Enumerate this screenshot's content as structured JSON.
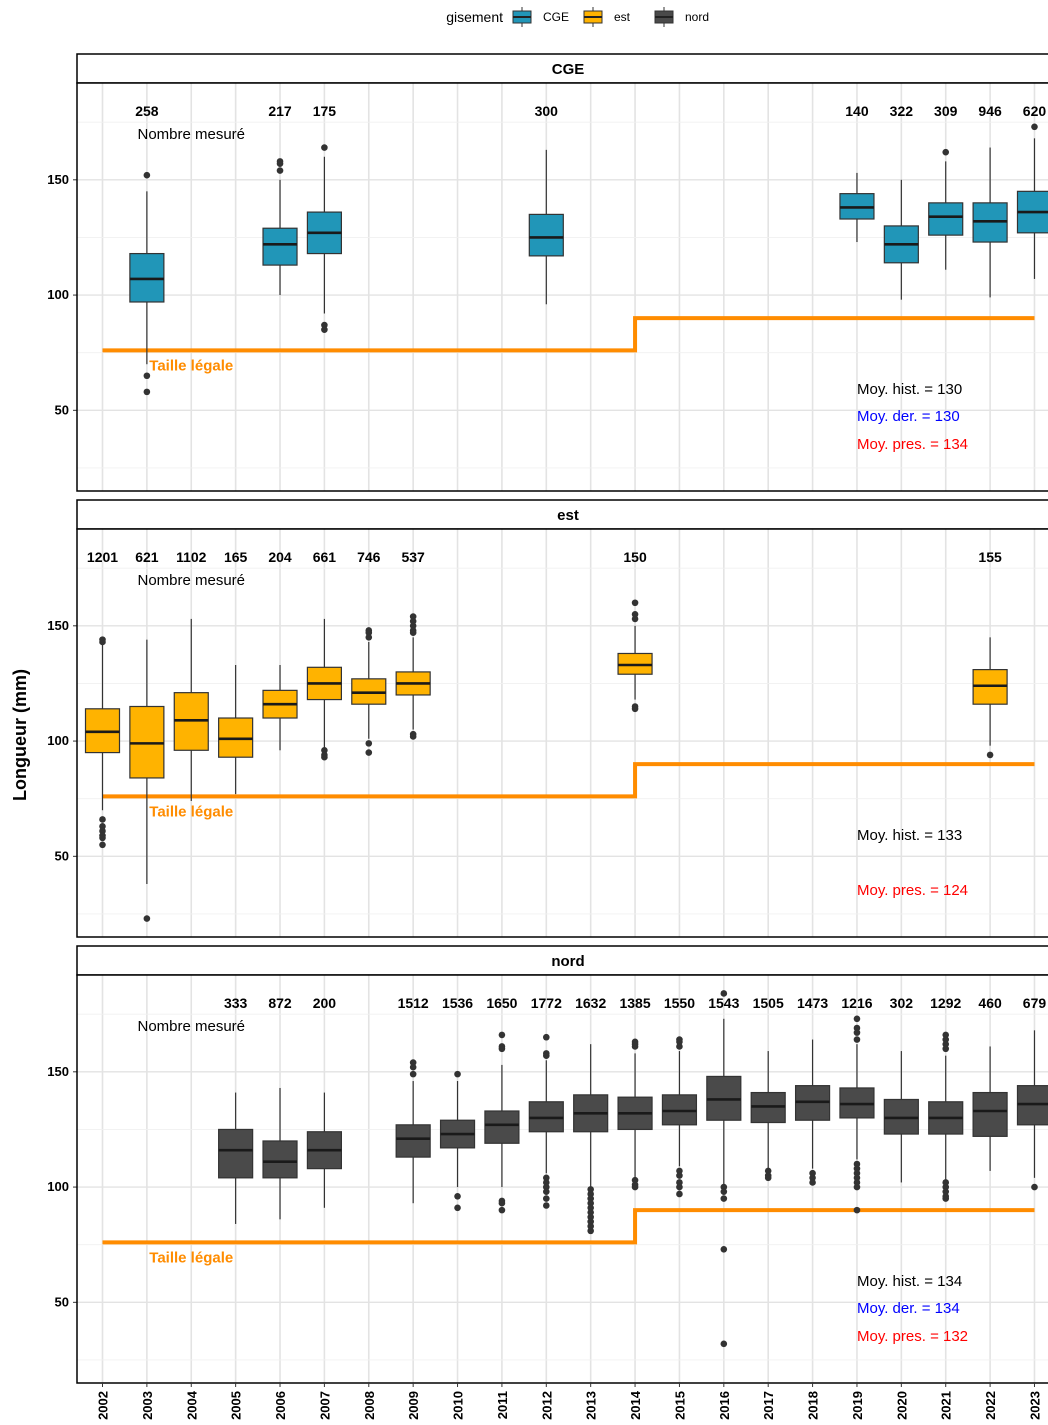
{
  "chart_data": {
    "type": "boxplot",
    "ylabel": "Longueur (mm)",
    "ylim": [
      15,
      192
    ],
    "yticks": [
      50,
      100,
      150
    ],
    "years": [
      "2002",
      "2003",
      "2004",
      "2005",
      "2006",
      "2007",
      "2008",
      "2009",
      "2010",
      "2011",
      "2012",
      "2013",
      "2014",
      "2015",
      "2016",
      "2017",
      "2018",
      "2019",
      "2020",
      "2021",
      "2022",
      "2023"
    ],
    "legend": {
      "title": "gisement",
      "entries": [
        {
          "label": "CGE",
          "color": "#2196b8"
        },
        {
          "label": "est",
          "color": "#ffb300"
        },
        {
          "label": "nord",
          "color": "#4a4a4a"
        }
      ]
    },
    "count_label": "Nombre mesuré",
    "legal_label": "Taille légale",
    "legal_color": "#ff8c00",
    "legal_size": [
      {
        "from": "2002",
        "to": "2014",
        "value": 76
      },
      {
        "from": "2014",
        "to": "2023",
        "value": 90
      }
    ],
    "panels": [
      {
        "name": "CGE",
        "color": "#2196b8",
        "boxes": [
          {
            "year": "2003",
            "n": "258",
            "min": 70,
            "q1": 97,
            "median": 107,
            "q3": 118,
            "max": 145,
            "outliers": [
              152,
              65,
              58
            ]
          },
          {
            "year": "2006",
            "n": "217",
            "min": 100,
            "q1": 113,
            "median": 122,
            "q3": 129,
            "max": 150,
            "outliers": [
              158,
              157,
              154
            ]
          },
          {
            "year": "2007",
            "n": "175",
            "min": 92,
            "q1": 118,
            "median": 127,
            "q3": 136,
            "max": 160,
            "outliers": [
              164,
              87,
              85
            ]
          },
          {
            "year": "2012",
            "n": "300",
            "min": 96,
            "q1": 117,
            "median": 125,
            "q3": 135,
            "max": 163,
            "outliers": []
          },
          {
            "year": "2019",
            "n": "140",
            "min": 123,
            "q1": 133,
            "median": 138,
            "q3": 144,
            "max": 153,
            "outliers": []
          },
          {
            "year": "2020",
            "n": "322",
            "min": 98,
            "q1": 114,
            "median": 122,
            "q3": 130,
            "max": 150,
            "outliers": []
          },
          {
            "year": "2021",
            "n": "309",
            "min": 111,
            "q1": 126,
            "median": 134,
            "q3": 140,
            "max": 158,
            "outliers": [
              162
            ]
          },
          {
            "year": "2022",
            "n": "946",
            "min": 99,
            "q1": 123,
            "median": 132,
            "q3": 140,
            "max": 164,
            "outliers": []
          },
          {
            "year": "2023",
            "n": "620",
            "min": 107,
            "q1": 127,
            "median": 136,
            "q3": 145,
            "max": 168,
            "outliers": [
              173
            ]
          }
        ],
        "stats": [
          {
            "label": "Moy. hist. =",
            "value": "130",
            "color": "#000000"
          },
          {
            "label": "Moy. der. =",
            "value": "130",
            "color": "#0000ff"
          },
          {
            "label": "Moy. pres. =",
            "value": "134",
            "color": "#ff0000"
          }
        ]
      },
      {
        "name": "est",
        "color": "#ffb300",
        "boxes": [
          {
            "year": "2002",
            "n": "1201",
            "min": 70,
            "q1": 95,
            "median": 104,
            "q3": 114,
            "max": 142,
            "outliers": [
              144,
              143,
              66,
              63,
              61,
              59,
              58,
              55
            ]
          },
          {
            "year": "2003",
            "n": "621",
            "min": 38,
            "q1": 84,
            "median": 99,
            "q3": 115,
            "max": 144,
            "outliers": [
              23
            ]
          },
          {
            "year": "2004",
            "n": "1102",
            "min": 74,
            "q1": 96,
            "median": 109,
            "q3": 121,
            "max": 153,
            "outliers": []
          },
          {
            "year": "2005",
            "n": "165",
            "min": 77,
            "q1": 93,
            "median": 101,
            "q3": 110,
            "max": 133,
            "outliers": []
          },
          {
            "year": "2006",
            "n": "204",
            "min": 96,
            "q1": 110,
            "median": 116,
            "q3": 122,
            "max": 133,
            "outliers": []
          },
          {
            "year": "2007",
            "n": "661",
            "min": 97,
            "q1": 118,
            "median": 125,
            "q3": 132,
            "max": 153,
            "outliers": [
              96,
              94,
              93
            ]
          },
          {
            "year": "2008",
            "n": "746",
            "min": 101,
            "q1": 116,
            "median": 121,
            "q3": 127,
            "max": 143,
            "outliers": [
              148,
              147,
              145,
              99,
              95
            ]
          },
          {
            "year": "2009",
            "n": "537",
            "min": 105,
            "q1": 120,
            "median": 125,
            "q3": 130,
            "max": 145,
            "outliers": [
              154,
              152,
              150,
              148,
              147,
              103,
              102
            ]
          },
          {
            "year": "2014",
            "n": "150",
            "min": 118,
            "q1": 129,
            "median": 133,
            "q3": 138,
            "max": 150,
            "outliers": [
              160,
              155,
              153,
              115,
              114
            ]
          },
          {
            "year": "2022",
            "n": "155",
            "min": 98,
            "q1": 116,
            "median": 124,
            "q3": 131,
            "max": 145,
            "outliers": [
              94
            ]
          }
        ],
        "stats": [
          {
            "label": "Moy. hist. =",
            "value": "133",
            "color": "#000000"
          },
          {
            "label": "Moy. pres. =",
            "value": "124",
            "color": "#ff0000"
          }
        ]
      },
      {
        "name": "nord",
        "color": "#4a4a4a",
        "boxes": [
          {
            "year": "2005",
            "n": "333",
            "min": 84,
            "q1": 104,
            "median": 116,
            "q3": 125,
            "max": 141,
            "outliers": []
          },
          {
            "year": "2006",
            "n": "872",
            "min": 86,
            "q1": 104,
            "median": 111,
            "q3": 120,
            "max": 143,
            "outliers": []
          },
          {
            "year": "2007",
            "n": "200",
            "min": 91,
            "q1": 108,
            "median": 116,
            "q3": 124,
            "max": 141,
            "outliers": []
          },
          {
            "year": "2009",
            "n": "1512",
            "min": 93,
            "q1": 113,
            "median": 121,
            "q3": 127,
            "max": 146,
            "outliers": [
              154,
              152,
              149
            ]
          },
          {
            "year": "2010",
            "n": "1536",
            "min": 100,
            "q1": 117,
            "median": 123,
            "q3": 129,
            "max": 146,
            "outliers": [
              149,
              96,
              91
            ]
          },
          {
            "year": "2011",
            "n": "1650",
            "min": 100,
            "q1": 119,
            "median": 127,
            "q3": 133,
            "max": 153,
            "outliers": [
              166,
              161,
              160,
              94,
              93,
              90
            ]
          },
          {
            "year": "2012",
            "n": "1772",
            "min": 106,
            "q1": 124,
            "median": 130,
            "q3": 137,
            "max": 155,
            "outliers": [
              165,
              158,
              157,
              104,
              102,
              100,
              98,
              95,
              92
            ]
          },
          {
            "year": "2013",
            "n": "1632",
            "min": 100,
            "q1": 124,
            "median": 132,
            "q3": 140,
            "max": 162,
            "outliers": [
              99,
              97,
              95,
              93,
              91,
              89,
              87,
              85,
              83,
              81
            ]
          },
          {
            "year": "2014",
            "n": "1385",
            "min": 104,
            "q1": 125,
            "median": 132,
            "q3": 139,
            "max": 158,
            "outliers": [
              163,
              162,
              161,
              103,
              101,
              100
            ]
          },
          {
            "year": "2015",
            "n": "1550",
            "min": 109,
            "q1": 127,
            "median": 133,
            "q3": 140,
            "max": 159,
            "outliers": [
              164,
              163,
              161,
              107,
              105,
              102,
              100,
              97
            ]
          },
          {
            "year": "2016",
            "n": "1543",
            "min": 101,
            "q1": 129,
            "median": 138,
            "q3": 148,
            "max": 173,
            "outliers": [
              184,
              100,
              98,
              95,
              73,
              32
            ]
          },
          {
            "year": "2017",
            "n": "1505",
            "min": 108,
            "q1": 128,
            "median": 135,
            "q3": 141,
            "max": 159,
            "outliers": [
              107,
              105,
              104
            ]
          },
          {
            "year": "2018",
            "n": "1473",
            "min": 108,
            "q1": 129,
            "median": 137,
            "q3": 144,
            "max": 164,
            "outliers": [
              106,
              104,
              102
            ]
          },
          {
            "year": "2019",
            "n": "1216",
            "min": 112,
            "q1": 130,
            "median": 136,
            "q3": 143,
            "max": 162,
            "outliers": [
              173,
              169,
              167,
              164,
              110,
              108,
              106,
              104,
              102,
              100,
              90
            ]
          },
          {
            "year": "2020",
            "n": "302",
            "min": 102,
            "q1": 123,
            "median": 130,
            "q3": 138,
            "max": 159,
            "outliers": []
          },
          {
            "year": "2021",
            "n": "1292",
            "min": 103,
            "q1": 123,
            "median": 130,
            "q3": 137,
            "max": 157,
            "outliers": [
              166,
              164,
              162,
              160,
              102,
              100,
              98,
              96,
              95
            ]
          },
          {
            "year": "2022",
            "n": "460",
            "min": 107,
            "q1": 122,
            "median": 133,
            "q3": 141,
            "max": 161,
            "outliers": []
          },
          {
            "year": "2023",
            "n": "679",
            "min": 104,
            "q1": 127,
            "median": 136,
            "q3": 144,
            "max": 168,
            "outliers": [
              100
            ]
          }
        ],
        "stats": [
          {
            "label": "Moy. hist. =",
            "value": "134",
            "color": "#000000"
          },
          {
            "label": "Moy. der. =",
            "value": "134",
            "color": "#0000ff"
          },
          {
            "label": "Moy. pres. =",
            "value": "132",
            "color": "#ff0000"
          }
        ]
      }
    ]
  }
}
